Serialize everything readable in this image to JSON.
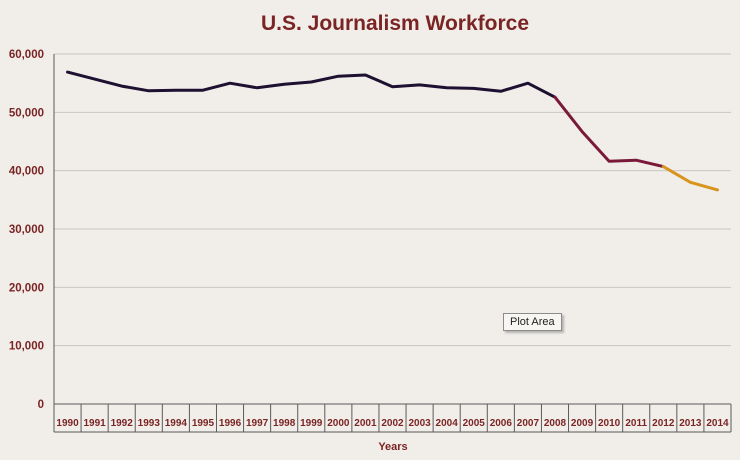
{
  "chart_data": {
    "type": "line",
    "title": "U.S. Journalism Workforce",
    "xlabel": "Years",
    "ylabel": "",
    "ylim": [
      0,
      60000
    ],
    "yticks": [
      "0",
      "10,000",
      "20,000",
      "30,000",
      "40,000",
      "50,000",
      "60,000"
    ],
    "categories": [
      "1990",
      "1991",
      "1992",
      "1993",
      "1994",
      "1995",
      "1996",
      "1997",
      "1998",
      "1999",
      "2000",
      "2001",
      "2002",
      "2003",
      "2004",
      "2005",
      "2006",
      "2007",
      "2008",
      "2009",
      "2010",
      "2011",
      "2012",
      "2013",
      "2014"
    ],
    "series": [
      {
        "values": [
          56900,
          55700,
          54500,
          53700,
          53800,
          53800,
          55000,
          54200,
          54800,
          55200,
          56200,
          56400,
          54400,
          54700,
          54200,
          54100,
          53600,
          55000,
          52600,
          46700,
          41600,
          41800,
          40700,
          38000,
          36700
        ]
      }
    ],
    "segment_colors": [
      {
        "from": "1990",
        "to": "2008",
        "color": "#1d1030"
      },
      {
        "from": "2008",
        "to": "2012",
        "color": "#7a1a3a"
      },
      {
        "from": "2012",
        "to": "2014",
        "color": "#d9941e"
      }
    ],
    "grid": true,
    "legend": "none"
  },
  "tooltip": {
    "text": "Plot Area"
  },
  "colors": {
    "background": "#f1eeea",
    "text": "#7b2424",
    "gridline": "#c9c6c3"
  }
}
